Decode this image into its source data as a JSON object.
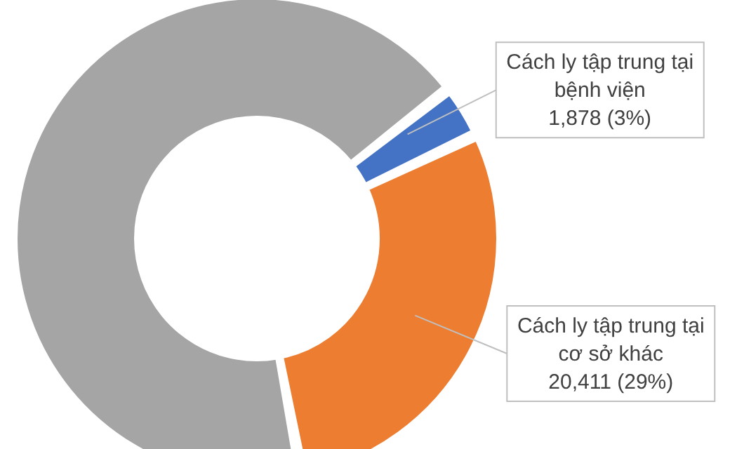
{
  "chart_data": {
    "type": "donut",
    "categories": [
      "Cách ly tập trung tại bệnh viện",
      "Cách ly tập trung tại cơ sở khác",
      null
    ],
    "values": [
      3,
      29,
      68
    ],
    "value_labels": [
      "1,878 (3%)",
      "20,411 (29%)",
      null
    ],
    "colors": [
      "#4472c4",
      "#ed7d31",
      "#a5a5a5"
    ],
    "legend": false
  }
}
